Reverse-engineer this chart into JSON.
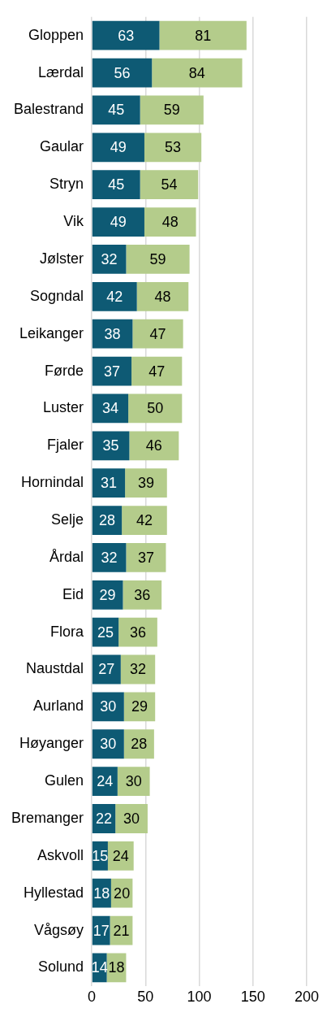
{
  "chart_data": {
    "type": "bar",
    "orientation": "horizontal",
    "stacked": true,
    "data_labels": true,
    "grid": "x",
    "categories": [
      "Gloppen",
      "Lærdal",
      "Balestrand",
      "Gaular",
      "Stryn",
      "Vik",
      "Jølster",
      "Sogndal",
      "Leikanger",
      "Førde",
      "Luster",
      "Fjaler",
      "Hornindal",
      "Selje",
      "Årdal",
      "Eid",
      "Flora",
      "Naustdal",
      "Aurland",
      "Høyanger",
      "Gulen",
      "Bremanger",
      "Askvoll",
      "Hyllestad",
      "Vågsøy",
      "Solund"
    ],
    "series": [
      {
        "color": "#0e5a74",
        "values": [
          63,
          56,
          45,
          49,
          45,
          49,
          32,
          42,
          38,
          37,
          34,
          35,
          31,
          28,
          32,
          29,
          25,
          27,
          30,
          30,
          24,
          22,
          15,
          18,
          17,
          14
        ]
      },
      {
        "color": "#b4cc8b",
        "values": [
          81,
          84,
          59,
          53,
          54,
          48,
          59,
          48,
          47,
          47,
          50,
          46,
          39,
          42,
          37,
          36,
          36,
          32,
          29,
          28,
          30,
          30,
          24,
          20,
          21,
          18
        ]
      }
    ],
    "xlim": [
      0,
      200
    ],
    "xticks": [
      0,
      50,
      100,
      150,
      200
    ]
  }
}
